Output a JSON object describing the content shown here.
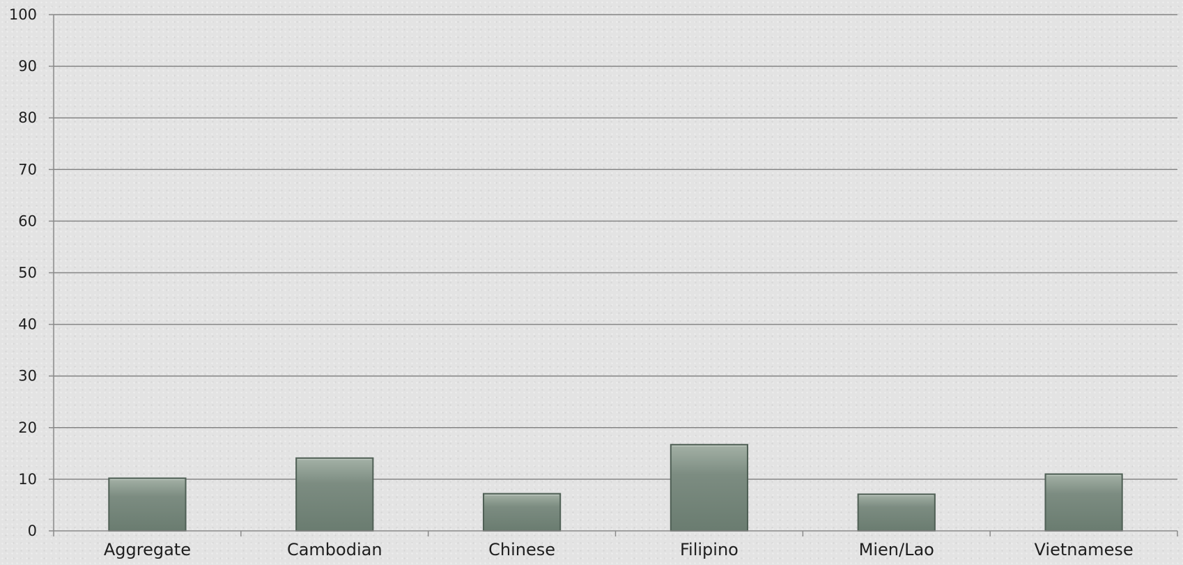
{
  "chart_data": {
    "type": "bar",
    "categories": [
      "Aggregate",
      "Cambodian",
      "Chinese",
      "Filipino",
      "Mien/Lao",
      "Vietnamese"
    ],
    "values": [
      10.2,
      14.1,
      7.2,
      16.7,
      7.1,
      11.0
    ],
    "ylim": [
      0,
      100
    ],
    "yticks": [
      "0",
      "10",
      "20",
      "30",
      "40",
      "50",
      "60",
      "70",
      "80",
      "90",
      "100"
    ],
    "grid": true,
    "legend": "none",
    "colors": {
      "bar_top": "#a4b1a6",
      "bar_mid": "#7c8c81",
      "bar_bottom": "#6a7c70",
      "bar_stroke": "#4f5f55",
      "grid": "#858585",
      "axis": "#8a8a8a"
    }
  }
}
